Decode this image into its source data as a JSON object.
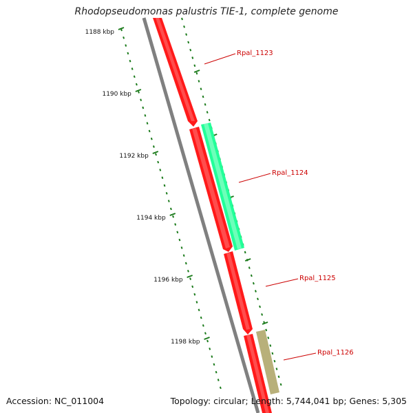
{
  "header": {
    "title": "Rhodopseudomonas palustris TIE-1, complete genome"
  },
  "footer": {
    "accession": "Accession: NC_011004",
    "topology": "Topology: circular; Length: 5,744,041 bp; Genes: 5,305"
  },
  "colors": {
    "forward_gene": "#ff1a1a",
    "reverse_gene_teal": "#22ff99",
    "reverse_gene_olive": "#b8b07a",
    "backbone": "#808080",
    "ticks": "#1a7a1a",
    "gene_label": "#cc0000"
  },
  "ruler": {
    "ticks": [
      {
        "kbp": 1188,
        "label": "1188 kbp"
      },
      {
        "kbp": 1190,
        "label": "1190 kbp"
      },
      {
        "kbp": 1192,
        "label": "1192 kbp"
      },
      {
        "kbp": 1194,
        "label": "1194 kbp"
      },
      {
        "kbp": 1196,
        "label": "1196 kbp"
      },
      {
        "kbp": 1198,
        "label": "1198 kbp"
      }
    ]
  },
  "genes": [
    {
      "id": "Rpal_1123",
      "label": "Rpal_1123",
      "strand": "forward",
      "color": "#ff1a1a"
    },
    {
      "id": "Rpal_1124",
      "label": "Rpal_1124",
      "strand": "reverse",
      "color": "#22ff99"
    },
    {
      "id": "Rpal_1125",
      "label": "Rpal_1125",
      "strand": "forward",
      "color": "#ff1a1a"
    },
    {
      "id": "Rpal_1126",
      "label": "Rpal_1126",
      "strand": "reverse",
      "color": "#b8b07a"
    }
  ]
}
